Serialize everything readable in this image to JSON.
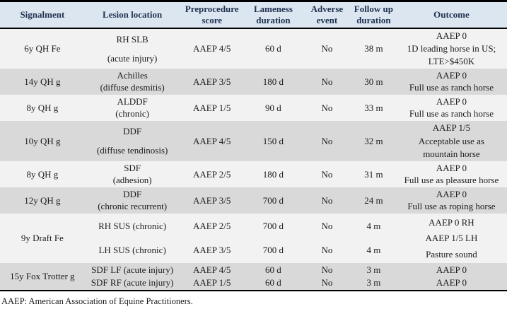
{
  "table": {
    "headers": [
      "Signalment",
      "Lesion location",
      "Preprocedure score",
      "Lameness duration",
      "Adverse event",
      "Follow up duration",
      "Outcome"
    ],
    "rows": [
      {
        "signalment": [
          "6y QH Fe"
        ],
        "lesion": [
          "RH SLB",
          "(acute injury)"
        ],
        "score": [
          "AAEP 4/5"
        ],
        "lameness": [
          "60 d"
        ],
        "adverse": [
          "No"
        ],
        "followup": [
          "38 m"
        ],
        "outcome": [
          "AAEP 0",
          "1D leading horse in US;",
          "LTE>$450K"
        ]
      },
      {
        "signalment": [
          "14y QH g"
        ],
        "lesion": [
          "Achilles",
          "(diffuse desmitis)"
        ],
        "score": [
          "AAEP 3/5"
        ],
        "lameness": [
          "180 d"
        ],
        "adverse": [
          "No"
        ],
        "followup": [
          "30 m"
        ],
        "outcome": [
          "AAEP 0",
          "Full use as ranch horse"
        ]
      },
      {
        "signalment": [
          "8y QH g"
        ],
        "lesion": [
          "ALDDF",
          "(chronic)"
        ],
        "score": [
          "AAEP 1/5"
        ],
        "lameness": [
          "90 d"
        ],
        "adverse": [
          "No"
        ],
        "followup": [
          "33 m"
        ],
        "outcome": [
          "AAEP 0",
          "Full use as ranch horse"
        ]
      },
      {
        "signalment": [
          "10y QH g"
        ],
        "lesion": [
          "DDF",
          "(diffuse tendinosis)"
        ],
        "score": [
          "AAEP 4/5"
        ],
        "lameness": [
          "150 d"
        ],
        "adverse": [
          "No"
        ],
        "followup": [
          "32 m"
        ],
        "outcome": [
          "AAEP 1/5",
          "Acceptable use as",
          "mountain horse"
        ]
      },
      {
        "signalment": [
          "8y QH g"
        ],
        "lesion": [
          "SDF",
          "(adhesion)"
        ],
        "score": [
          "AAEP 2/5"
        ],
        "lameness": [
          "180 d"
        ],
        "adverse": [
          "No"
        ],
        "followup": [
          "31 m"
        ],
        "outcome": [
          "AAEP 0",
          "Full use as pleasure horse"
        ]
      },
      {
        "signalment": [
          "12y QH g"
        ],
        "lesion": [
          "DDF",
          "(chronic recurrent)"
        ],
        "score": [
          "AAEP 3/5"
        ],
        "lameness": [
          "700 d"
        ],
        "adverse": [
          "No"
        ],
        "followup": [
          "24 m"
        ],
        "outcome": [
          "AAEP 0",
          "Full use as roping horse"
        ]
      },
      {
        "signalment": [
          "9y Draft Fe"
        ],
        "lesion": [
          "RH SUS (chronic)",
          "LH SUS (chronic)"
        ],
        "score": [
          "AAEP 2/5",
          "AAEP 3/5"
        ],
        "lameness": [
          "700 d",
          "700 d"
        ],
        "adverse": [
          "No",
          "No"
        ],
        "followup": [
          "4 m",
          "4 m"
        ],
        "outcome": [
          "AAEP 0 RH",
          "AAEP 1/5 LH",
          "Pasture sound"
        ]
      },
      {
        "signalment": [
          "15y Fox Trotter g"
        ],
        "lesion": [
          "SDF LF (acute injury)",
          "SDF RF (acute injury)"
        ],
        "score": [
          "AAEP 4/5",
          "AAEP 1/5"
        ],
        "lameness": [
          "60 d",
          "60 d"
        ],
        "adverse": [
          "No",
          "No"
        ],
        "followup": [
          "3 m",
          "3 m"
        ],
        "outcome": [
          "AAEP 0",
          "AAEP 0"
        ]
      }
    ],
    "footnote": "AAEP: American Association of Equine Practitioners."
  },
  "colors": {
    "header_bg": "#dce6f1",
    "row_light": "#f2f2f2",
    "row_dark": "#d9d9d9",
    "header_text": "#1f3150",
    "border": "#000000"
  }
}
